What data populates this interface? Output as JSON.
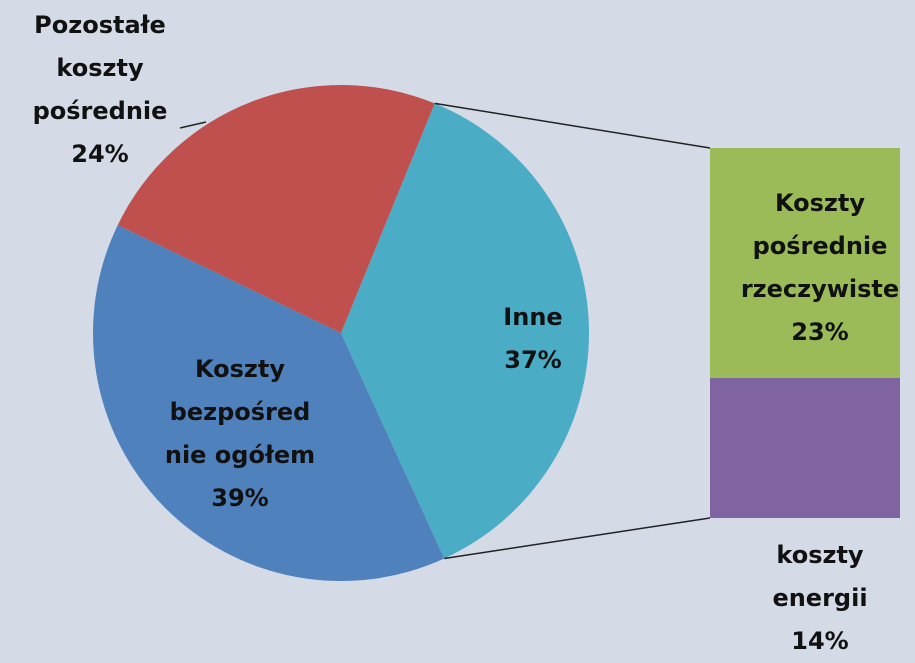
{
  "chart_data": {
    "type": "pie-of-bar",
    "categories": [
      "Inne",
      "Koszty\nbezpośred\nnie ogółem",
      "Pozostałe\nkoszty\npośrednie"
    ],
    "values": [
      37,
      39,
      24
    ],
    "value_labels": [
      "37%",
      "39%",
      "24%"
    ],
    "colors": [
      "#4bacc6",
      "#4f81bd",
      "#c0504d"
    ],
    "secondary": {
      "categories": [
        "Koszty\npośrednie\nrzeczywiste",
        "koszty\nenergii"
      ],
      "values": [
        23,
        14
      ],
      "value_labels": [
        "23%",
        "14%"
      ],
      "colors": [
        "#9bbb59",
        "#8064a2"
      ]
    }
  }
}
